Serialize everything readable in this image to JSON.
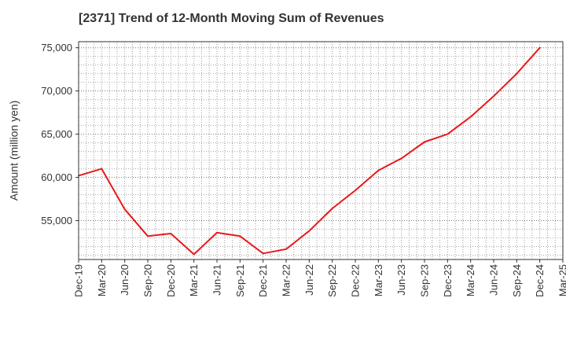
{
  "chart_data": {
    "type": "line",
    "title": "[2371]  Trend of 12-Month Moving Sum of Revenues",
    "xlabel": "",
    "ylabel": "Amount (million yen)",
    "ylim": [
      50500,
      75700
    ],
    "yticks": [
      55000,
      60000,
      65000,
      70000,
      75000
    ],
    "ytick_labels": [
      "55,000",
      "60,000",
      "65,000",
      "70,000",
      "75,000"
    ],
    "grid": true,
    "line_color": "#e8191b",
    "categories": [
      "Dec-19",
      "Mar-20",
      "Jun-20",
      "Sep-20",
      "Dec-20",
      "Mar-21",
      "Jun-21",
      "Sep-21",
      "Dec-21",
      "Mar-22",
      "Jun-22",
      "Sep-22",
      "Dec-22",
      "Mar-23",
      "Jun-23",
      "Sep-23",
      "Dec-23",
      "Mar-24",
      "Jun-24",
      "Sep-24",
      "Dec-24",
      "Mar-25"
    ],
    "series": [
      {
        "name": "",
        "values": [
          60200,
          61000,
          56300,
          53200,
          53500,
          51100,
          53600,
          53200,
          51200,
          51700,
          53800,
          56400,
          58500,
          60800,
          62200,
          64100,
          65000,
          67000,
          69400,
          72000,
          75000,
          null
        ]
      }
    ]
  }
}
